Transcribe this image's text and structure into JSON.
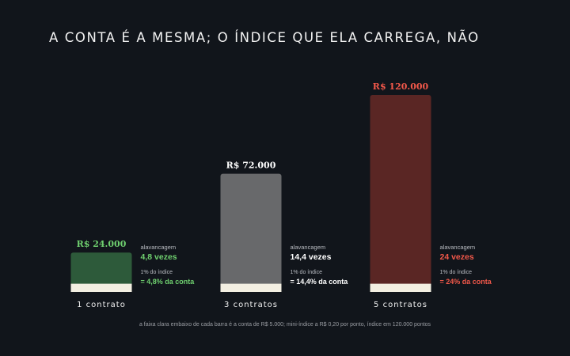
{
  "title": "A CONTA É A MESMA; O ÍNDICE QUE ELA CARREGA, NÃO",
  "footnote": "a faixa clara embaixo de cada barra é a conta de R$ 5.000; mini-índice a R$ 0,20 por ponto, índice em 120.000 pontos",
  "colors": {
    "background": "#11151b",
    "base_band": "#f3efe2",
    "green": "#2d5a3a",
    "grey": "#68696b",
    "red": "#5a2624",
    "green_text": "#6fd06f",
    "red_text": "#f2584a",
    "white_text": "#ffffff",
    "muted_text": "#b9bcc2"
  },
  "chart_data": {
    "type": "bar",
    "categories": [
      "1 contrato",
      "3 contratos",
      "5 contratos"
    ],
    "values": [
      24000,
      72000,
      120000
    ],
    "value_labels": [
      "R$ 24.000",
      "R$ 72.000",
      "R$ 120.000"
    ],
    "base_account": 5000,
    "ylim": [
      0,
      120000
    ],
    "bar_colors": [
      "#2d5a3a",
      "#68696b",
      "#5a2624"
    ],
    "value_label_colors": [
      "#6fd06f",
      "#ffffff",
      "#f2584a"
    ],
    "annotations": [
      {
        "leverage_label": "alavancagem",
        "leverage_value": "4,8 vezes",
        "index_label": "1% do índice",
        "index_value": "= 4,8% da conta",
        "color": "#6fd06f"
      },
      {
        "leverage_label": "alavancagem",
        "leverage_value": "14,4 vezes",
        "index_label": "1% do índice",
        "index_value": "= 14,4% da conta",
        "color": "#ffffff"
      },
      {
        "leverage_label": "alavancagem",
        "leverage_value": "24 vezes",
        "index_label": "1% do índice",
        "index_value": "= 24% da conta",
        "color": "#f2584a"
      }
    ]
  }
}
